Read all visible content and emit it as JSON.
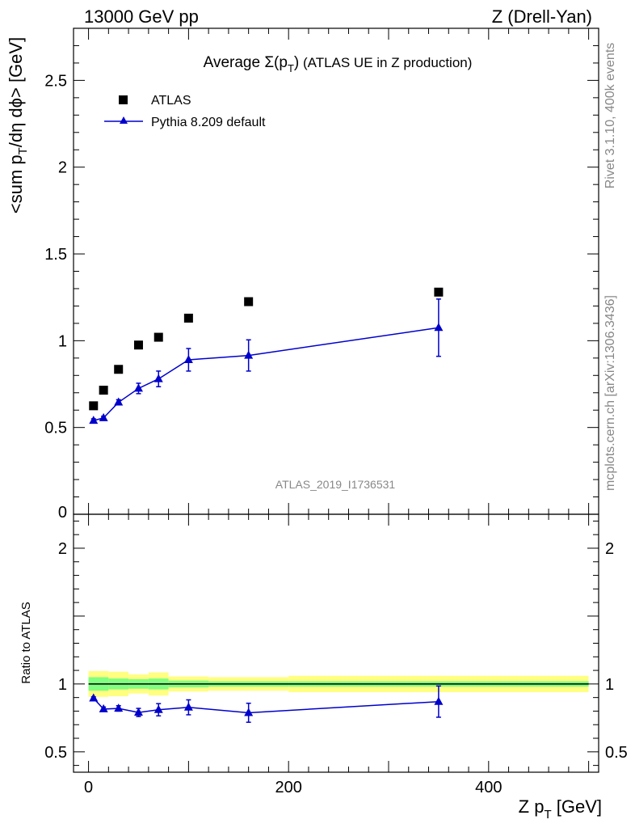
{
  "header": {
    "left": "13000 GeV pp",
    "right": "Z (Drell-Yan)"
  },
  "side_text": {
    "rivet": "Rivet 3.1.10,  400k events",
    "mcplots": "mcplots.cern.ch [arXiv:1306.3436]"
  },
  "analysis_id": "ATLAS_2019_I1736531",
  "chart_data": [
    {
      "type": "scatter",
      "title_prefix": "Average ",
      "title_sigma": "Σ(p",
      "title_sub": "T",
      "title_close": ")",
      "title_suffix": " (ATLAS UE in Z production)",
      "ylabel_main": "<sum p",
      "ylabel_sub": "T",
      "ylabel_rest": "/dη dϕ> [GeV]",
      "xlim": [
        -15,
        510
      ],
      "ylim": [
        0,
        2.8
      ],
      "yticks": [
        0.5,
        1,
        1.5,
        2,
        2.5
      ],
      "ytick_labels": [
        "0.5",
        "1",
        "1.5",
        "2",
        "2.5"
      ],
      "ytick_zero_label": "0",
      "legend": {
        "placement": "top-left",
        "entries": [
          "ATLAS",
          "Pythia 8.209 default"
        ]
      },
      "series": [
        {
          "name": "ATLAS",
          "marker": "square",
          "color": "#000000",
          "x": [
            5,
            15,
            30,
            50,
            70,
            100,
            160,
            350
          ],
          "y": [
            0.625,
            0.715,
            0.835,
            0.975,
            1.02,
            1.13,
            1.225,
            1.28
          ]
        },
        {
          "name": "Pythia 8.209 default",
          "marker": "triangle",
          "color": "#0000cc",
          "x": [
            5,
            15,
            30,
            50,
            70,
            100,
            160,
            350
          ],
          "y": [
            0.54,
            0.555,
            0.645,
            0.725,
            0.78,
            0.89,
            0.915,
            1.075
          ],
          "err_low": [
            0.01,
            0.01,
            0.015,
            0.03,
            0.045,
            0.065,
            0.09,
            0.165
          ],
          "err_high": [
            0.01,
            0.01,
            0.015,
            0.03,
            0.045,
            0.065,
            0.09,
            0.165
          ]
        }
      ]
    },
    {
      "type": "scatter",
      "ylabel": "Ratio to ATLAS",
      "xlabel_main": "Z p",
      "xlabel_sub": "T",
      "xlabel_rest": " [GeV]",
      "xlim": [
        -15,
        510
      ],
      "ylim": [
        0.35,
        2.25
      ],
      "yticks": [
        0.5,
        1,
        2
      ],
      "ytick_labels": [
        "0.5",
        "1",
        "2"
      ],
      "xticks": [
        0,
        200,
        400
      ],
      "xtick_labels": [
        "0",
        "200",
        "400"
      ],
      "bands": {
        "edges": [
          0,
          10,
          20,
          40,
          60,
          80,
          120,
          200,
          500
        ],
        "green_half": [
          0.05,
          0.05,
          0.04,
          0.035,
          0.04,
          0.025,
          0.02,
          0.02
        ],
        "yellow_half": [
          0.095,
          0.095,
          0.09,
          0.07,
          0.085,
          0.055,
          0.05,
          0.06
        ],
        "green_color": "#80ff80",
        "yellow_color": "#ffff80"
      },
      "series": [
        {
          "name": "Pythia 8.209 default",
          "color": "#0000cc",
          "x": [
            5,
            15,
            30,
            50,
            70,
            100,
            160,
            350
          ],
          "y": [
            0.895,
            0.815,
            0.82,
            0.79,
            0.81,
            0.828,
            0.788,
            0.87
          ],
          "err_low": [
            0.01,
            0.015,
            0.02,
            0.03,
            0.045,
            0.055,
            0.07,
            0.115
          ],
          "err_high": [
            0.01,
            0.015,
            0.02,
            0.03,
            0.045,
            0.055,
            0.07,
            0.115
          ]
        }
      ]
    }
  ]
}
